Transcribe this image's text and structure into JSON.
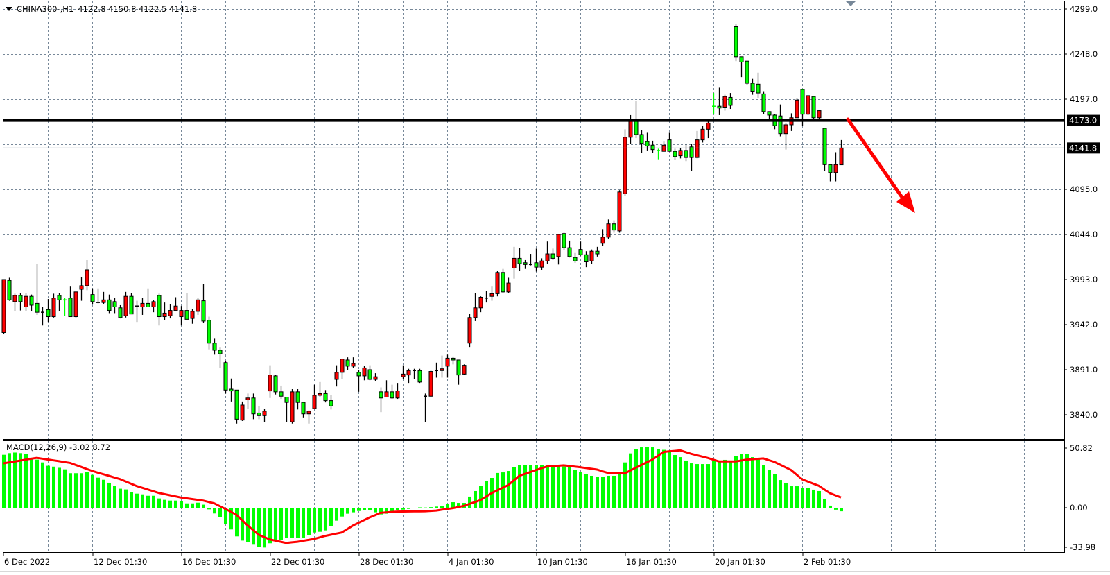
{
  "header": {
    "symbol": "CHINA300-,H1",
    "ohlc": "4122.8 4150.8 4122.5 4141.8"
  },
  "indicator": {
    "label": "MACD(12,26,9) -3.02 8.72"
  },
  "colors": {
    "up_body": "#ff0000",
    "down_body": "#00ff00",
    "grid": "#778899",
    "histogram": "#00ff00",
    "signal": "#ff0000",
    "arrow": "#ff0000",
    "level_line": "#000000",
    "bid_line": "#778899"
  },
  "annotations": {
    "horizontal_level": {
      "price": 4173.0,
      "label": "4173.0"
    },
    "current_price": {
      "price": 4141.8,
      "label": "4141.8"
    },
    "arrow": {
      "direction": "down-right",
      "icon": "trend-arrow-icon"
    },
    "chart_shift_marker": {
      "icon": "triangle-down-icon"
    }
  },
  "chart_data": {
    "type": "candlestick",
    "symbol": "CHINA300-",
    "timeframe": "H1",
    "price_axis": {
      "ticks": [
        "4299.0",
        "4248.0",
        "4197.0",
        "4095.0",
        "4044.0",
        "3993.0",
        "3942.0",
        "3891.0",
        "3840.0"
      ],
      "ylim": [
        3840,
        4299
      ]
    },
    "time_axis": {
      "labels": [
        [
          1,
          "6 Dec 2022"
        ],
        [
          17,
          "12 Dec 01:30"
        ],
        [
          33,
          "16 Dec 01:30"
        ],
        [
          49,
          "22 Dec 01:30"
        ],
        [
          65,
          "28 Dec 01:30"
        ],
        [
          81,
          "4 Jan 01:30"
        ],
        [
          97,
          "10 Jan 01:30"
        ],
        [
          113,
          "16 Jan 01:30"
        ],
        [
          129,
          "20 Jan 01:30"
        ],
        [
          145,
          "2 Feb 01:30"
        ]
      ]
    },
    "grid": true,
    "ohlc": [
      [
        3933,
        3993,
        3931,
        3993
      ],
      [
        3992,
        3995,
        3969,
        3970
      ],
      [
        3968,
        3977,
        3957,
        3975
      ],
      [
        3975,
        3978,
        3958,
        3968
      ],
      [
        3962,
        3978,
        3957,
        3974
      ],
      [
        3974,
        3976,
        3957,
        3964
      ],
      [
        3966,
        4011,
        3953,
        3956
      ],
      [
        3956,
        3962,
        3941,
        3956
      ],
      [
        3959,
        3971,
        3945,
        3951
      ],
      [
        3951,
        3977,
        3950,
        3972
      ],
      [
        3975,
        3978,
        3957,
        3970
      ],
      [
        3970,
        3972,
        3952,
        3969.9
      ],
      [
        3972,
        3985,
        3951,
        3951
      ],
      [
        3951,
        3979,
        3950,
        3979
      ],
      [
        3982,
        3996,
        3969,
        3986
      ],
      [
        3986,
        4015,
        3981,
        4004
      ],
      [
        3976,
        3983,
        3965,
        3968
      ],
      [
        3967,
        3983,
        3966,
        3967
      ],
      [
        3967,
        3979,
        3965,
        3970
      ],
      [
        3970,
        3976,
        3955,
        3958
      ],
      [
        3968,
        3972,
        3955,
        3962
      ],
      [
        3961,
        3964,
        3949,
        3950
      ],
      [
        3952,
        3979,
        3950,
        3974
      ],
      [
        3974,
        3978,
        3954,
        3954
      ],
      [
        3963,
        3969,
        3945,
        3963
      ],
      [
        3962,
        3972,
        3953,
        3966
      ],
      [
        3966,
        3983,
        3962,
        3962
      ],
      [
        3962,
        3970,
        3956,
        3968
      ],
      [
        3975,
        3977,
        3941,
        3951
      ],
      [
        3951,
        3967,
        3947,
        3955
      ],
      [
        3952,
        3965,
        3949,
        3958
      ],
      [
        3958,
        3973,
        3958,
        3963
      ],
      [
        3951,
        3963,
        3941,
        3958
      ],
      [
        3958,
        3978,
        3948,
        3948
      ],
      [
        3949,
        3960,
        3943,
        3957
      ],
      [
        3957,
        3972,
        3953,
        3970
      ],
      [
        3969,
        3988,
        3944,
        3946
      ],
      [
        3947,
        3951,
        3914,
        3921
      ],
      [
        3921,
        3926,
        3908,
        3913
      ],
      [
        3913,
        3916,
        3893,
        3909
      ],
      [
        3899,
        3901,
        3864,
        3868
      ],
      [
        3869,
        3881,
        3855,
        3867
      ],
      [
        3868,
        3868,
        3830,
        3835
      ],
      [
        3834,
        3855,
        3833,
        3851
      ],
      [
        3857,
        3864,
        3847,
        3859
      ],
      [
        3859,
        3864,
        3835,
        3841
      ],
      [
        3842,
        3850,
        3835,
        3839
      ],
      [
        3839,
        3847,
        3832,
        3844
      ],
      [
        3867,
        3896,
        3859,
        3885
      ],
      [
        3884,
        3885,
        3863,
        3866
      ],
      [
        3866,
        3873,
        3858,
        3861
      ],
      [
        3860,
        3860,
        3832,
        3854
      ],
      [
        3832,
        3869,
        3830,
        3866
      ],
      [
        3866,
        3869,
        3846,
        3854
      ],
      [
        3854,
        3854,
        3837,
        3841
      ],
      [
        3841,
        3845,
        3830,
        3844
      ],
      [
        3847,
        3874,
        3847,
        3862
      ],
      [
        3862,
        3877,
        3860,
        3864
      ],
      [
        3864,
        3868,
        3854,
        3856
      ],
      [
        3856,
        3862,
        3846,
        3850
      ],
      [
        3880,
        3896,
        3872,
        3888
      ],
      [
        3888,
        3903,
        3880,
        3903
      ],
      [
        3902,
        3905,
        3891,
        3895
      ],
      [
        3895,
        3905,
        3893,
        3898
      ],
      [
        3888,
        3891,
        3866,
        3884
      ],
      [
        3884,
        3895,
        3879,
        3893
      ],
      [
        3891,
        3896,
        3879,
        3880
      ],
      [
        3880,
        3887,
        3878,
        3883
      ],
      [
        3866,
        3871,
        3843,
        3859
      ],
      [
        3860,
        3879,
        3860,
        3866
      ],
      [
        3866,
        3874,
        3858,
        3859
      ],
      [
        3859,
        3876,
        3858,
        3867
      ],
      [
        3883,
        3896,
        3880,
        3886
      ],
      [
        3885,
        3892,
        3876,
        3890
      ],
      [
        3890,
        3892,
        3880,
        3890
      ],
      [
        3890,
        3892,
        3876,
        3877
      ],
      [
        3860,
        3864,
        3832,
        3861
      ],
      [
        3861,
        3890,
        3860,
        3889
      ],
      [
        3890,
        3899,
        3882,
        3890
      ],
      [
        3890,
        3907,
        3882,
        3892
      ],
      [
        3895,
        3908,
        3882,
        3904
      ],
      [
        3904,
        3906,
        3897,
        3902
      ],
      [
        3902,
        3902,
        3874,
        3885
      ],
      [
        3886,
        3897,
        3885,
        3896
      ],
      [
        3921,
        3954,
        3916,
        3950
      ],
      [
        3950,
        3978,
        3946,
        3961
      ],
      [
        3961,
        3974,
        3956,
        3973
      ],
      [
        3972,
        3980,
        3967,
        3972
      ],
      [
        3974,
        3985,
        3969,
        3977
      ],
      [
        3977,
        4003,
        3974,
        4001
      ],
      [
        4001,
        4005,
        3978,
        3979
      ],
      [
        3979,
        3995,
        3978,
        3989
      ],
      [
        4006,
        4030,
        3994,
        4017
      ],
      [
        4017,
        4029,
        4003,
        4011
      ],
      [
        4012,
        4015,
        4005,
        4010
      ],
      [
        4010,
        4022,
        4009,
        4010
      ],
      [
        4012,
        4028,
        4002,
        4007
      ],
      [
        4007,
        4017,
        4004,
        4014
      ],
      [
        4014,
        4036,
        4011,
        4022
      ],
      [
        4022,
        4028,
        4015,
        4017
      ],
      [
        4019,
        4044,
        4010,
        4044
      ],
      [
        4045,
        4046,
        4026,
        4029
      ],
      [
        4029,
        4037,
        4018,
        4019
      ],
      [
        4018,
        4023,
        4012,
        4014
      ],
      [
        4027,
        4036,
        4020,
        4021
      ],
      [
        4021,
        4025,
        4007,
        4013
      ],
      [
        4014,
        4027,
        4011,
        4025
      ],
      [
        4025,
        4030,
        4019,
        4022
      ],
      [
        4034,
        4050,
        4031,
        4041
      ],
      [
        4041,
        4061,
        4039,
        4056
      ],
      [
        4056,
        4060,
        4046,
        4049
      ],
      [
        4048,
        4094,
        4046,
        4092
      ],
      [
        4090,
        4163,
        4088,
        4154
      ],
      [
        4154,
        4179,
        4146,
        4172
      ],
      [
        4172,
        4195,
        4153,
        4157
      ],
      [
        4157,
        4162,
        4136,
        4147
      ],
      [
        4149,
        4159,
        4139,
        4144
      ],
      [
        4145,
        4150,
        4136,
        4140
      ],
      [
        4139,
        4141,
        4129,
        4138
      ],
      [
        4138,
        4149,
        4138,
        4145
      ],
      [
        4151,
        4159,
        4138,
        4138
      ],
      [
        4138,
        4141,
        4128,
        4132
      ],
      [
        4133,
        4142,
        4130,
        4139
      ],
      [
        4139,
        4146,
        4127,
        4131
      ],
      [
        4143,
        4146,
        4116,
        4131
      ],
      [
        4131,
        4161,
        4130,
        4151
      ],
      [
        4151,
        4167,
        4148,
        4163
      ],
      [
        4163,
        4175,
        4153,
        4170
      ],
      [
        4189,
        4204,
        4180,
        4188.9
      ],
      [
        4189,
        4210,
        4179,
        4187
      ],
      [
        4188,
        4202,
        4184,
        4200
      ],
      [
        4199,
        4204,
        4186,
        4190
      ],
      [
        4279,
        4282,
        4240,
        4245
      ],
      [
        4245,
        4245,
        4222,
        4239
      ],
      [
        4240,
        4240,
        4213,
        4215
      ],
      [
        4215,
        4220,
        4202,
        4206
      ],
      [
        4214,
        4227,
        4198,
        4204
      ],
      [
        4203,
        4206,
        4180,
        4183
      ],
      [
        4183,
        4183,
        4174,
        4179
      ],
      [
        4179,
        4180,
        4163,
        4167
      ],
      [
        4178,
        4191,
        4155,
        4158
      ],
      [
        4158,
        4170,
        4140,
        4168
      ],
      [
        4168,
        4181,
        4161,
        4176
      ],
      [
        4176,
        4198,
        4176,
        4196
      ],
      [
        4208,
        4208,
        4167,
        4180
      ],
      [
        4180,
        4201,
        4179,
        4201
      ],
      [
        4200,
        4200,
        4175,
        4176
      ],
      [
        4176,
        4185,
        4174,
        4184
      ],
      [
        4164,
        4164,
        4116,
        4123
      ],
      [
        4123,
        4123,
        4104,
        4114
      ],
      [
        4114,
        4137,
        4104,
        4123
      ],
      [
        4122.8,
        4150.8,
        4122.5,
        4141.8
      ]
    ],
    "macd": {
      "name": "MACD(12,26,9)",
      "axis_ticks": [
        "50.82",
        "0.00",
        "-33.98"
      ],
      "ylim": [
        -33.98,
        50.82
      ],
      "histogram": [
        45.1,
        46.5,
        47,
        46.5,
        45.9,
        42.6,
        41,
        38.6,
        35.7,
        35,
        34,
        32.7,
        29.4,
        29.4,
        29.4,
        30.5,
        28,
        25.6,
        23.8,
        21.3,
        18.9,
        16.2,
        15.6,
        13.2,
        12,
        11.4,
        10.2,
        10.2,
        7.9,
        6.7,
        6.1,
        6.1,
        5.5,
        3.7,
        3.7,
        4.3,
        2.6,
        -1.4,
        -4.9,
        -7.9,
        -13.8,
        -18.5,
        -24.4,
        -28,
        -29.2,
        -31.5,
        -33.3,
        -33.9,
        -30.3,
        -28.4,
        -27.6,
        -26,
        -25.4,
        -26,
        -25.4,
        -23.6,
        -21.1,
        -20.5,
        -19.3,
        -15.8,
        -11,
        -7.5,
        -5.1,
        -3.9,
        -2.8,
        -2.2,
        -2.2,
        -3.9,
        -5.7,
        -5.1,
        -3.3,
        -2.2,
        -1.6,
        -1,
        -0.4,
        0.3,
        0.2,
        0.5,
        1,
        1.2,
        3,
        4.7,
        4.1,
        4.1,
        9.5,
        14.2,
        18.9,
        22.5,
        25.4,
        29.6,
        30.1,
        31.3,
        34.3,
        36.1,
        36.6,
        36.6,
        36.1,
        36.1,
        36.1,
        35,
        36.1,
        35.1,
        34.5,
        32.1,
        30.7,
        28.6,
        27.2,
        26.2,
        26.2,
        27.2,
        27.2,
        30.7,
        38.6,
        46.3,
        49.8,
        51.4,
        52,
        51.4,
        50.2,
        49.3,
        47.9,
        44.9,
        43.1,
        40.2,
        37.8,
        37.2,
        37.2,
        37.2,
        39.6,
        39.6,
        40.8,
        40.2,
        44.3,
        46.1,
        45.5,
        43.1,
        41.4,
        36.6,
        32.5,
        28.4,
        23.6,
        20.7,
        18.3,
        18.3,
        17.1,
        17.1,
        15.4,
        14.2,
        7.7,
        1.8,
        -1.7,
        -3.02
      ],
      "signal_points": [
        [
          1,
          37.8
        ],
        [
          7,
          42.5
        ],
        [
          13,
          38.2
        ],
        [
          17,
          31.3
        ],
        [
          22,
          24.4
        ],
        [
          25,
          18.5
        ],
        [
          29,
          12.6
        ],
        [
          33,
          8.7
        ],
        [
          37,
          6.1
        ],
        [
          39,
          3.7
        ],
        [
          41,
          -1
        ],
        [
          43,
          -6
        ],
        [
          45,
          -15
        ],
        [
          47,
          -23
        ],
        [
          49,
          -27
        ],
        [
          52,
          -30
        ],
        [
          54,
          -29
        ],
        [
          57,
          -26.6
        ],
        [
          59,
          -24
        ],
        [
          62,
          -21.1
        ],
        [
          64,
          -15.2
        ],
        [
          67,
          -8.3
        ],
        [
          69,
          -4.3
        ],
        [
          72,
          -3.3
        ],
        [
          77,
          -3
        ],
        [
          79,
          -2.4
        ],
        [
          82,
          -0.4
        ],
        [
          84,
          1.6
        ],
        [
          87,
          6.5
        ],
        [
          89,
          12.4
        ],
        [
          92,
          19.3
        ],
        [
          94,
          27.2
        ],
        [
          97,
          32.1
        ],
        [
          99,
          35.1
        ],
        [
          102,
          36.1
        ],
        [
          105,
          34.5
        ],
        [
          108,
          32.5
        ],
        [
          110,
          29.6
        ],
        [
          113,
          29.2
        ],
        [
          115,
          34.1
        ],
        [
          118,
          41
        ],
        [
          120,
          47.5
        ],
        [
          123,
          48.9
        ],
        [
          125,
          45.9
        ],
        [
          128,
          42.4
        ],
        [
          130,
          39.4
        ],
        [
          133,
          39.4
        ],
        [
          135,
          41
        ],
        [
          138,
          42
        ],
        [
          140,
          39
        ],
        [
          143,
          32.1
        ],
        [
          145,
          24.2
        ],
        [
          148,
          18.7
        ],
        [
          150,
          12.4
        ],
        [
          152,
          8.72
        ]
      ]
    }
  }
}
